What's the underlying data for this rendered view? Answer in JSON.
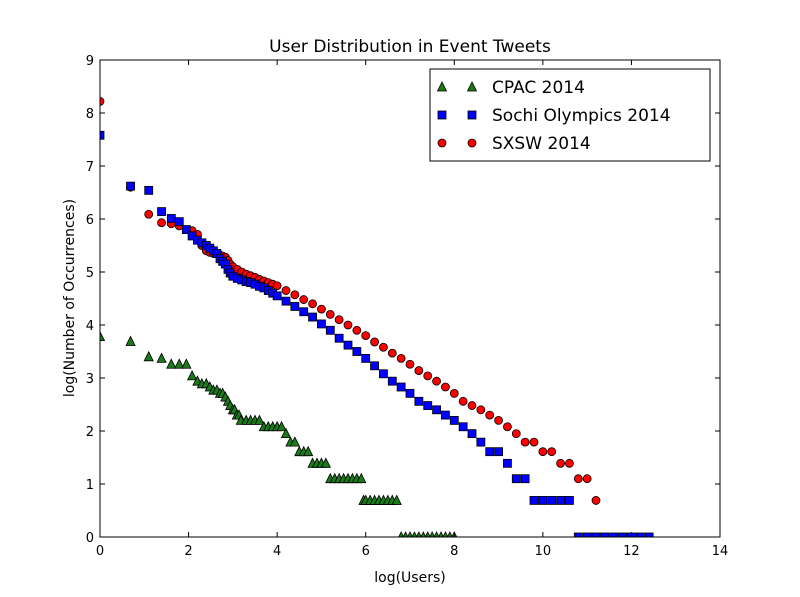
{
  "chart_data": {
    "type": "scatter",
    "title": "User Distribution in Event Tweets",
    "xlabel": "log(Users)",
    "ylabel": "log(Number of Occurrences)",
    "xlim": [
      0,
      14
    ],
    "ylim": [
      0,
      9
    ],
    "xticks": [
      "0",
      "2",
      "4",
      "6",
      "8",
      "10",
      "12",
      "14"
    ],
    "yticks": [
      "0",
      "1",
      "2",
      "3",
      "4",
      "5",
      "6",
      "7",
      "8",
      "9"
    ],
    "grid": false,
    "legend_position": "top-right",
    "series": [
      {
        "name": "CPAC 2014",
        "marker": "triangle",
        "color": "#1a7a1a",
        "x": [
          0,
          0.69,
          1.1,
          1.39,
          1.61,
          1.79,
          1.95,
          2.08,
          2.2,
          2.3,
          2.4,
          2.48,
          2.56,
          2.64,
          2.71,
          2.77,
          2.83,
          2.89,
          2.94,
          3.0,
          3.04,
          3.09,
          3.14,
          3.18,
          3.3,
          3.4,
          3.5,
          3.6,
          3.7,
          3.8,
          3.9,
          4.0,
          4.1,
          4.2,
          4.3,
          4.4,
          4.5,
          4.6,
          4.7,
          4.8,
          4.9,
          5.0,
          5.1,
          5.2,
          5.3,
          5.4,
          5.5,
          5.6,
          5.7,
          5.8,
          5.9,
          5.95,
          6.0,
          6.1,
          6.2,
          6.3,
          6.4,
          6.5,
          6.6,
          6.7,
          6.8,
          6.9,
          7.0,
          7.1,
          7.2,
          7.3,
          7.4,
          7.5,
          7.6,
          7.7,
          7.8,
          7.9,
          8.0
        ],
        "y": [
          3.78,
          3.69,
          3.4,
          3.37,
          3.26,
          3.26,
          3.26,
          3.04,
          2.94,
          2.89,
          2.89,
          2.83,
          2.77,
          2.77,
          2.71,
          2.71,
          2.64,
          2.56,
          2.48,
          2.4,
          2.4,
          2.3,
          2.3,
          2.2,
          2.2,
          2.2,
          2.2,
          2.2,
          2.08,
          2.08,
          2.08,
          2.08,
          2.08,
          1.95,
          1.79,
          1.79,
          1.61,
          1.61,
          1.61,
          1.39,
          1.39,
          1.39,
          1.39,
          1.1,
          1.1,
          1.1,
          1.1,
          1.1,
          1.1,
          1.1,
          1.1,
          0.69,
          0.69,
          0.69,
          0.69,
          0.69,
          0.69,
          0.69,
          0.69,
          0.69,
          0,
          0,
          0,
          0,
          0,
          0,
          0,
          0,
          0,
          0,
          0,
          0,
          0
        ]
      },
      {
        "name": "Sochi Olympics 2014",
        "marker": "square",
        "color": "#0000ff",
        "x": [
          0,
          0.69,
          1.1,
          1.39,
          1.61,
          1.79,
          1.95,
          2.08,
          2.2,
          2.3,
          2.4,
          2.48,
          2.56,
          2.64,
          2.71,
          2.77,
          2.83,
          2.89,
          2.94,
          3.0,
          3.1,
          3.2,
          3.3,
          3.4,
          3.5,
          3.6,
          3.7,
          3.8,
          3.9,
          4.0,
          4.2,
          4.4,
          4.6,
          4.8,
          5.0,
          5.2,
          5.4,
          5.6,
          5.8,
          6.0,
          6.2,
          6.4,
          6.6,
          6.8,
          7.0,
          7.2,
          7.4,
          7.6,
          7.8,
          8.0,
          8.2,
          8.4,
          8.6,
          8.8,
          9.0,
          9.2,
          9.4,
          9.6,
          9.8,
          10.0,
          10.2,
          10.4,
          10.6,
          10.8,
          11.0,
          11.2,
          11.4,
          11.6,
          11.8,
          12.0,
          12.2,
          12.4
        ],
        "y": [
          7.58,
          6.62,
          6.54,
          6.14,
          6.01,
          5.95,
          5.8,
          5.68,
          5.6,
          5.55,
          5.5,
          5.45,
          5.4,
          5.35,
          5.25,
          5.2,
          5.15,
          5.05,
          4.98,
          4.92,
          4.88,
          4.85,
          4.82,
          4.8,
          4.77,
          4.73,
          4.7,
          4.65,
          4.6,
          4.55,
          4.45,
          4.35,
          4.25,
          4.15,
          4.02,
          3.9,
          3.75,
          3.62,
          3.5,
          3.37,
          3.23,
          3.08,
          2.94,
          2.83,
          2.71,
          2.56,
          2.48,
          2.4,
          2.3,
          2.2,
          2.08,
          1.95,
          1.79,
          1.61,
          1.61,
          1.39,
          1.1,
          1.1,
          0.69,
          0.69,
          0.69,
          0.69,
          0.69,
          0,
          0,
          0,
          0,
          0,
          0,
          0,
          0,
          0
        ]
      },
      {
        "name": "SXSW 2014",
        "marker": "circle",
        "color": "#ff0000",
        "x": [
          0,
          0.69,
          1.1,
          1.39,
          1.61,
          1.79,
          1.95,
          2.08,
          2.2,
          2.3,
          2.4,
          2.48,
          2.56,
          2.64,
          2.71,
          2.77,
          2.83,
          2.89,
          2.94,
          3.0,
          3.1,
          3.2,
          3.3,
          3.4,
          3.5,
          3.6,
          3.7,
          3.8,
          3.9,
          4.0,
          4.2,
          4.4,
          4.6,
          4.8,
          5.0,
          5.2,
          5.4,
          5.6,
          5.8,
          6.0,
          6.2,
          6.4,
          6.6,
          6.8,
          7.0,
          7.2,
          7.4,
          7.6,
          7.8,
          8.0,
          8.2,
          8.4,
          8.6,
          8.8,
          9.0,
          9.2,
          9.4,
          9.6,
          9.8,
          10.0,
          10.2,
          10.4,
          10.6,
          10.8,
          11.0,
          11.2
        ],
        "y": [
          8.22,
          6.6,
          6.09,
          5.93,
          5.91,
          5.87,
          5.8,
          5.78,
          5.71,
          5.5,
          5.4,
          5.37,
          5.35,
          5.34,
          5.32,
          5.3,
          5.28,
          5.22,
          5.15,
          5.1,
          5.05,
          5.0,
          4.96,
          4.93,
          4.9,
          4.86,
          4.83,
          4.8,
          4.77,
          4.74,
          4.65,
          4.57,
          4.48,
          4.4,
          4.3,
          4.2,
          4.1,
          4.0,
          3.9,
          3.8,
          3.68,
          3.58,
          3.47,
          3.37,
          3.26,
          3.14,
          3.04,
          2.94,
          2.83,
          2.71,
          2.56,
          2.48,
          2.4,
          2.3,
          2.2,
          2.08,
          1.95,
          1.79,
          1.79,
          1.61,
          1.61,
          1.39,
          1.39,
          1.1,
          1.1,
          0.69
        ]
      }
    ]
  }
}
